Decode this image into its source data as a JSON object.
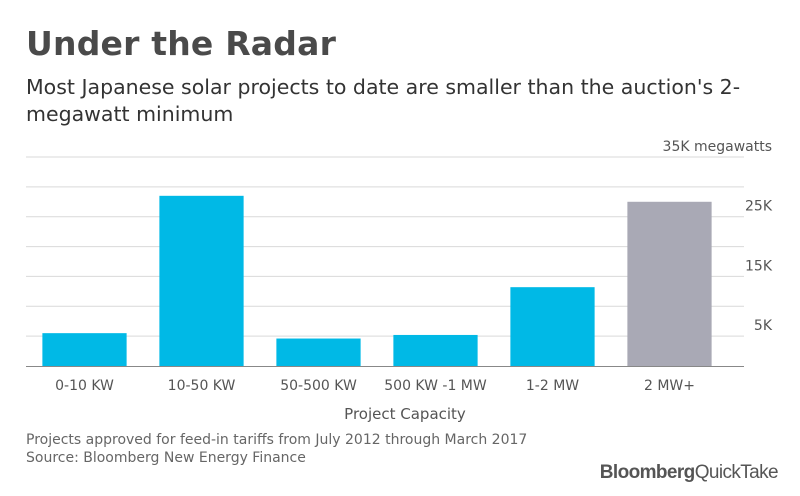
{
  "header": {
    "title": "Under the Radar",
    "subtitle": "Most Japanese solar projects to date are smaller than the auction's 2-megawatt minimum"
  },
  "footer": {
    "note": "Projects approved for feed-in tariffs from July 2012 through March 2017",
    "source": "Source: Bloomberg New Energy Finance"
  },
  "brand": {
    "part1": "Bloomberg",
    "part2": "QuickTake"
  },
  "colors": {
    "bar": "#00b9e6",
    "highlight": "#a9a9b5",
    "grid": "#d9d9d9",
    "axis": "#888888"
  },
  "chart_data": {
    "type": "bar",
    "categories": [
      "0-10 KW",
      "10-50 KW",
      "50-500 KW",
      "500 KW -1 MW",
      "1-2 MW",
      "2 MW+"
    ],
    "values": [
      5500,
      28500,
      4600,
      5200,
      13200,
      27500
    ],
    "highlight_index": 5,
    "xlabel": "Project Capacity",
    "ylabel": "",
    "ylim": [
      0,
      35000
    ],
    "grid": true,
    "y_ticks": [
      {
        "value": 5000,
        "label": "5K"
      },
      {
        "value": 15000,
        "label": "15K"
      },
      {
        "value": 25000,
        "label": "25K"
      },
      {
        "value": 35000,
        "label": "35K megawatts"
      }
    ],
    "y_axis_position": "right"
  }
}
